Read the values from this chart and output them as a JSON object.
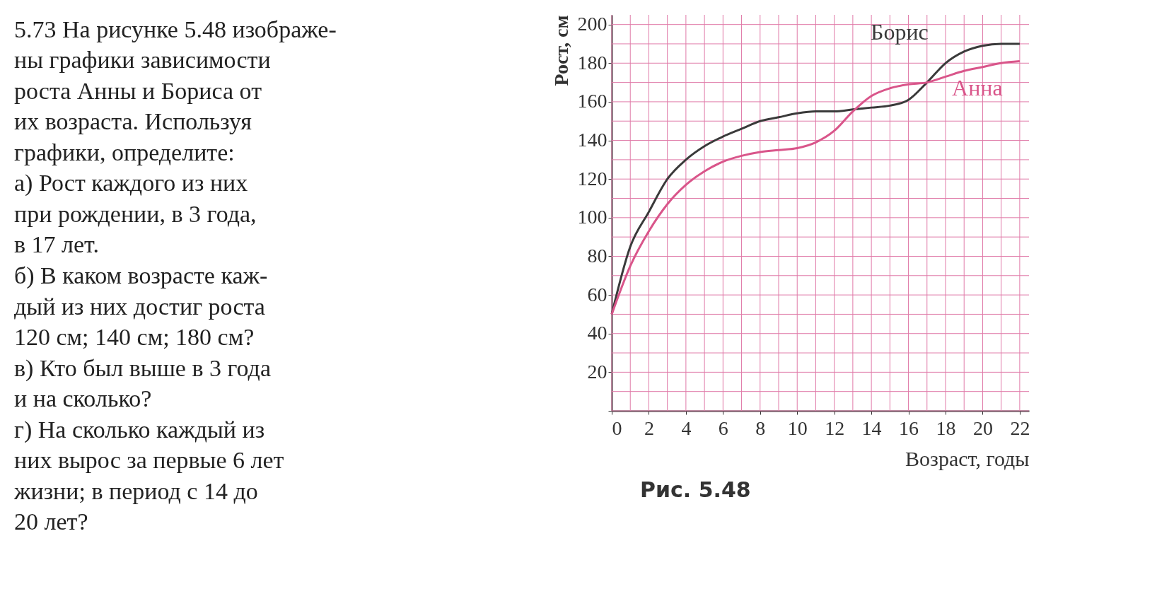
{
  "chart_data": {
    "type": "line",
    "xlabel": "Возраст, годы",
    "ylabel": "Рост, см",
    "x": [
      0,
      1,
      2,
      3,
      4,
      5,
      6,
      7,
      8,
      9,
      10,
      11,
      12,
      13,
      14,
      15,
      16,
      17,
      18,
      19,
      20,
      21,
      22
    ],
    "series": [
      {
        "name": "Борис",
        "color": "#3a3a3a",
        "values": [
          50,
          85,
          103,
          120,
          130,
          137,
          142,
          146,
          150,
          152,
          154,
          155,
          155,
          156,
          157,
          158,
          161,
          170,
          180,
          186,
          189,
          190,
          190
        ]
      },
      {
        "name": "Анна",
        "color": "#d9558a",
        "values": [
          50,
          75,
          93,
          107,
          117,
          124,
          129,
          132,
          134,
          135,
          136,
          139,
          145,
          155,
          163,
          167,
          169,
          170,
          173,
          176,
          178,
          180,
          181
        ]
      }
    ],
    "xlim": [
      0,
      22.5
    ],
    "xticks": [
      {
        "value": 0,
        "label": "0"
      },
      {
        "value": 1,
        "label": null
      },
      2,
      {
        "value": 3,
        "label": null
      },
      4,
      {
        "value": 5,
        "label": null
      },
      6,
      {
        "value": 7,
        "label": null
      },
      8,
      {
        "value": 9,
        "label": null
      },
      10,
      {
        "value": 11,
        "label": null
      },
      12,
      {
        "value": 13,
        "label": null
      },
      14,
      {
        "value": 15,
        "label": null
      },
      16,
      {
        "value": 17,
        "label": null
      },
      18,
      {
        "value": 19,
        "label": null
      },
      20,
      {
        "value": 21,
        "label": null
      },
      22
    ],
    "ylim": [
      0,
      205
    ],
    "yticks": [
      {
        "value": 0,
        "label": null
      },
      {
        "value": 10,
        "label": null
      },
      20,
      {
        "value": 30,
        "label": null
      },
      40,
      {
        "value": 50,
        "label": null
      },
      60,
      {
        "value": 70,
        "label": null
      },
      80,
      {
        "value": 90,
        "label": null
      },
      100,
      {
        "value": 110,
        "label": null
      },
      120,
      {
        "value": 130,
        "label": null
      },
      140,
      {
        "value": 150,
        "label": null
      },
      160,
      {
        "value": 170,
        "label": null
      },
      180,
      {
        "value": 190,
        "label": null
      },
      200
    ],
    "grid": true,
    "marker": "none",
    "line_style": "solid",
    "annotations": [
      "5.73 На рисунке 5.48 изображе-",
      "ны графики зависимости",
      "роста Анны и Бориса от",
      "их возраста. Используя",
      "графики, определите:",
      "а) Рост каждого из них",
      "при рождении, в 3 года,",
      "в 17 лет.",
      "б) В каком возрасте каж-",
      "дый из них достиг роста",
      "120 см; 140 см; 180 см?",
      "в) Кто был выше в 3 года",
      "и на сколько?",
      "г) На сколько каждый из",
      "них вырос за первые 6 лет",
      "жизни; в период с 14 до",
      "20 лет?",
      "Рис. 5.48"
    ]
  }
}
